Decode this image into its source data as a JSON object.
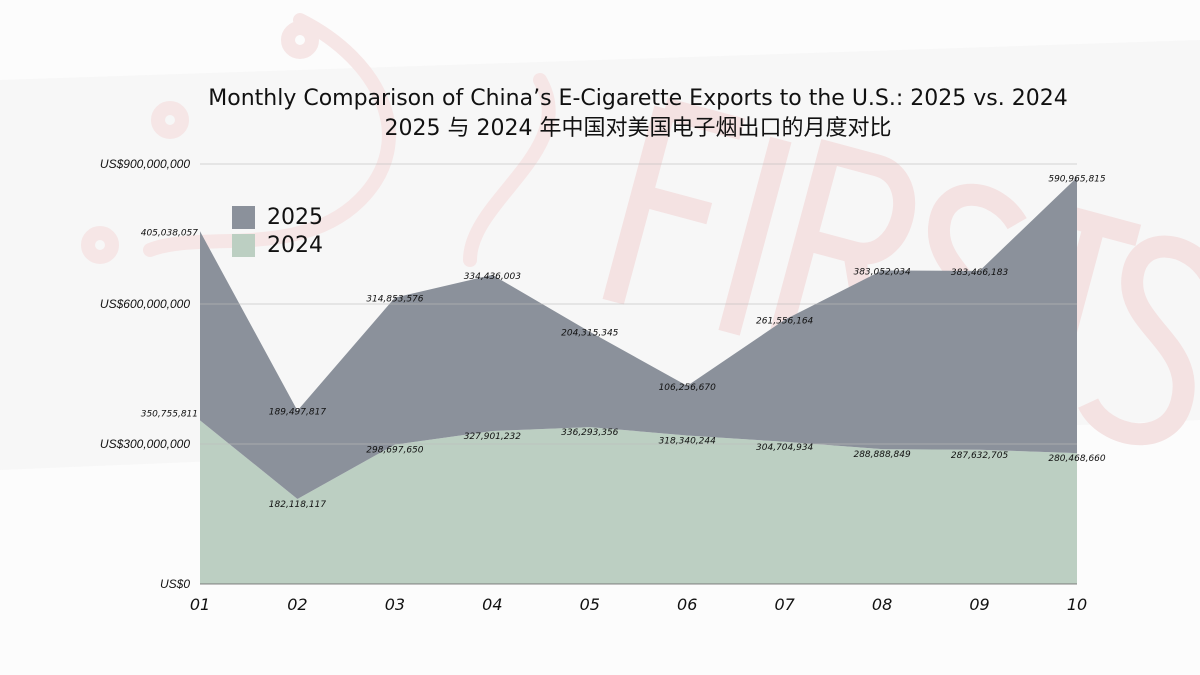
{
  "watermark": "FIRSTS",
  "chart_data": {
    "type": "area",
    "stacked": true,
    "title": "Monthly Comparison of China’s E-Cigarette Exports to the U.S.: 2025 vs. 2024",
    "subtitle": "2025 与 2024 年中国对美国电子烟出口的月度对比",
    "categories": [
      "01",
      "02",
      "03",
      "04",
      "05",
      "06",
      "07",
      "08",
      "09",
      "10"
    ],
    "series": [
      {
        "name": "2024",
        "color": "#bccfc2",
        "values": [
          350755811,
          182118117,
          298697650,
          327901232,
          336293356,
          318340244,
          304704934,
          288888849,
          287632705,
          280468660
        ],
        "labels": [
          "350,755,811",
          "182,118,117",
          "298,697,650",
          "327,901,232",
          "336,293,356",
          "318,340,244",
          "304,704,934",
          "288,888,849",
          "287,632,705",
          "280,468,660"
        ]
      },
      {
        "name": "2025",
        "color": "#8b919b",
        "values": [
          405038057,
          189497817,
          314853576,
          334436003,
          204315345,
          106256670,
          261556164,
          383052034,
          383466183,
          590965815
        ],
        "labels": [
          "405,038,057",
          "189,497,817",
          "314,853,576",
          "334,436,003",
          "204,315,345",
          "106,256,670",
          "261,556,164",
          "383,052,034",
          "383,466,183",
          "590,965,815"
        ]
      }
    ],
    "ylim": [
      0,
      900000000
    ],
    "yticks": [
      0,
      300000000,
      600000000,
      900000000
    ],
    "ytick_labels": [
      "US$0",
      "US$300,000,000",
      "US$600,000,000",
      "US$900,000,000"
    ],
    "grid": true,
    "legend": "top-left"
  }
}
